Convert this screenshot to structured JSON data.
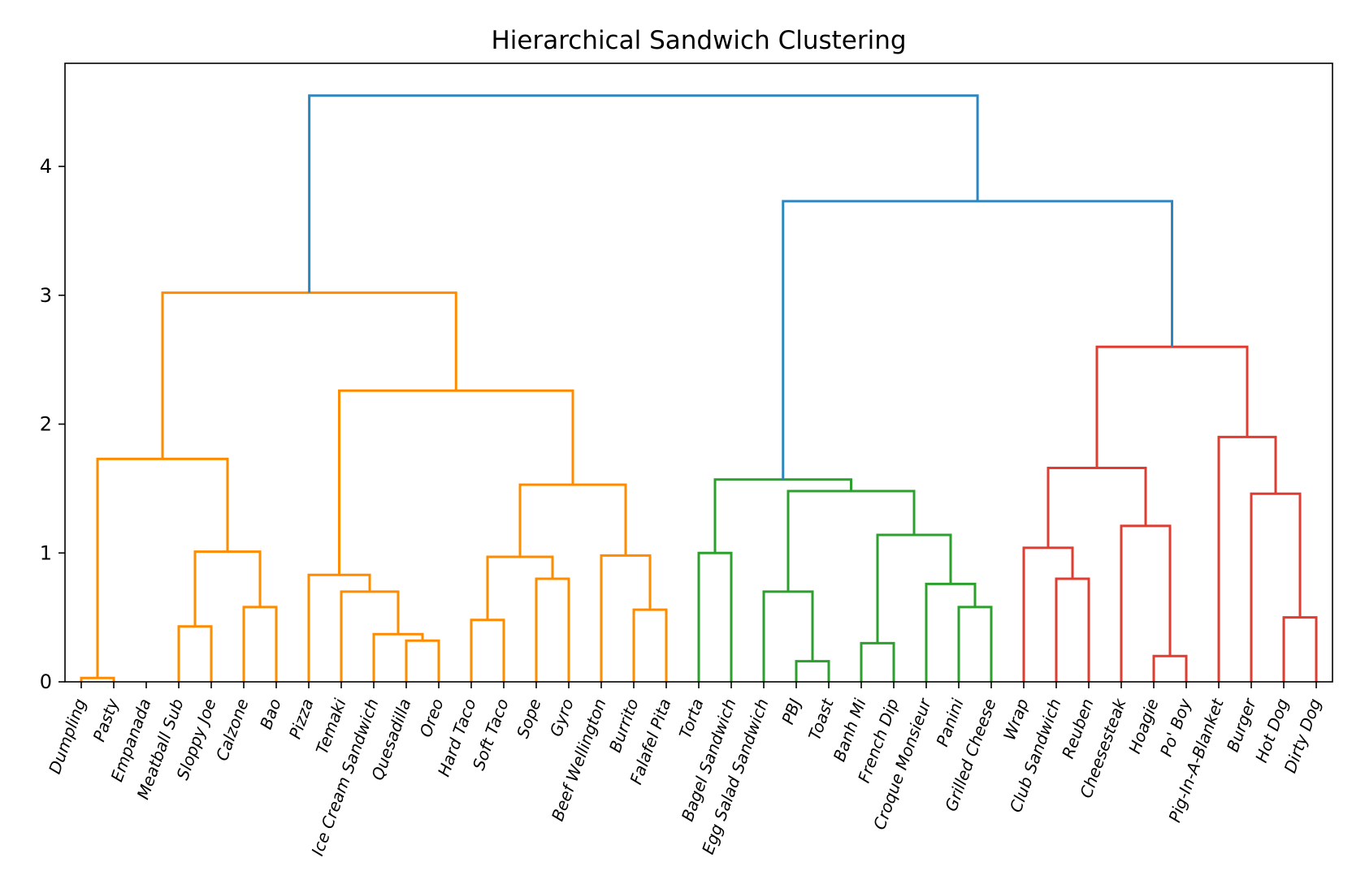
{
  "chart_data": {
    "type": "dendrogram",
    "title": "Hierarchical Sandwich Clustering",
    "xlabel": "",
    "ylabel": "",
    "ylim": [
      0,
      4.8
    ],
    "yticks": [
      0,
      1,
      2,
      3,
      4
    ],
    "grid": false,
    "colors": {
      "root": "#2e86c1",
      "cluster_orange": "#ff8c00",
      "cluster_green": "#2ca02c",
      "cluster_red": "#e03c31"
    },
    "leaves": [
      "Dumpling",
      "Pasty",
      "Empanada",
      "Meatball Sub",
      "Sloppy Joe",
      "Calzone",
      "Bao",
      "Pizza",
      "Temaki",
      "Ice Cream Sandwich",
      "Quesadilla",
      "Oreo",
      "Hard Taco",
      "Soft Taco",
      "Sope",
      "Gyro",
      "Beef Wellington",
      "Burrito",
      "Falafel Pita",
      "Torta",
      "Bagel Sandwich",
      "Egg Salad Sandwich",
      "PBJ",
      "Toast",
      "Banh Mi",
      "French Dip",
      "Croque Monsieur",
      "Panini",
      "Grilled Cheese",
      "Wrap",
      "Club Sandwich",
      "Reuben",
      "Cheesesteak",
      "Hoagie",
      "Po' Boy",
      "Pig-In-A-Blanket",
      "Burger",
      "Hot Dog",
      "Dirty Dog"
    ],
    "merges": [
      {
        "id": "m1",
        "left": 0,
        "right": 1,
        "height": 0.03,
        "color": "cluster_orange"
      },
      {
        "id": "m2",
        "left": 3,
        "right": 4,
        "height": 0.43,
        "color": "cluster_orange"
      },
      {
        "id": "m3",
        "left": 5,
        "right": 6,
        "height": 0.58,
        "color": "cluster_orange"
      },
      {
        "id": "m4",
        "left": "m2",
        "right": "m3",
        "height": 1.01,
        "color": "cluster_orange"
      },
      {
        "id": "m5",
        "left": "m1",
        "right": "m4",
        "height": 1.73,
        "color": "cluster_orange"
      },
      {
        "id": "m6",
        "left": 10,
        "right": 11,
        "height": 0.32,
        "color": "cluster_orange"
      },
      {
        "id": "m7",
        "left": 9,
        "right": "m6",
        "height": 0.37,
        "color": "cluster_orange"
      },
      {
        "id": "m8",
        "left": 8,
        "right": "m7",
        "height": 0.7,
        "color": "cluster_orange"
      },
      {
        "id": "m9",
        "left": 7,
        "right": "m8",
        "height": 0.83,
        "color": "cluster_orange"
      },
      {
        "id": "m10",
        "left": 12,
        "right": 13,
        "height": 0.48,
        "color": "cluster_orange"
      },
      {
        "id": "m11",
        "left": 14,
        "right": 15,
        "height": 0.8,
        "color": "cluster_orange"
      },
      {
        "id": "m12",
        "left": "m10",
        "right": "m11",
        "height": 0.97,
        "color": "cluster_orange"
      },
      {
        "id": "m13",
        "left": 17,
        "right": 18,
        "height": 0.56,
        "color": "cluster_orange"
      },
      {
        "id": "m14",
        "left": 16,
        "right": "m13",
        "height": 0.98,
        "color": "cluster_orange"
      },
      {
        "id": "m15",
        "left": "m12",
        "right": "m14",
        "height": 1.53,
        "color": "cluster_orange"
      },
      {
        "id": "m16",
        "left": "m9",
        "right": "m15",
        "height": 2.26,
        "color": "cluster_orange"
      },
      {
        "id": "m17",
        "left": "m5",
        "right": "m16",
        "height": 3.02,
        "color": "cluster_orange"
      },
      {
        "id": "m18",
        "left": 19,
        "right": 20,
        "height": 1.0,
        "color": "cluster_green"
      },
      {
        "id": "m19",
        "left": 22,
        "right": 23,
        "height": 0.16,
        "color": "cluster_green"
      },
      {
        "id": "m20",
        "left": 21,
        "right": "m19",
        "height": 0.7,
        "color": "cluster_green"
      },
      {
        "id": "m21",
        "left": 24,
        "right": 25,
        "height": 0.3,
        "color": "cluster_green"
      },
      {
        "id": "m22",
        "left": 27,
        "right": 28,
        "height": 0.58,
        "color": "cluster_green"
      },
      {
        "id": "m23",
        "left": 26,
        "right": "m22",
        "height": 0.76,
        "color": "cluster_green"
      },
      {
        "id": "m24",
        "left": "m21",
        "right": "m23",
        "height": 1.14,
        "color": "cluster_green"
      },
      {
        "id": "m25",
        "left": "m20",
        "right": "m24",
        "height": 1.48,
        "color": "cluster_green"
      },
      {
        "id": "m26",
        "left": "m18",
        "right": "m25",
        "height": 1.57,
        "color": "cluster_green"
      },
      {
        "id": "m27",
        "left": 30,
        "right": 31,
        "height": 0.8,
        "color": "cluster_red"
      },
      {
        "id": "m28",
        "left": 29,
        "right": "m27",
        "height": 1.04,
        "color": "cluster_red"
      },
      {
        "id": "m29",
        "left": 33,
        "right": 34,
        "height": 0.2,
        "color": "cluster_red"
      },
      {
        "id": "m30",
        "left": 32,
        "right": "m29",
        "height": 1.21,
        "color": "cluster_red"
      },
      {
        "id": "m31",
        "left": "m28",
        "right": "m30",
        "height": 1.66,
        "color": "cluster_red"
      },
      {
        "id": "m32",
        "left": 37,
        "right": 38,
        "height": 0.5,
        "color": "cluster_red"
      },
      {
        "id": "m33",
        "left": 36,
        "right": "m32",
        "height": 1.46,
        "color": "cluster_red"
      },
      {
        "id": "m34",
        "left": 35,
        "right": "m33",
        "height": 1.9,
        "color": "cluster_red"
      },
      {
        "id": "m35",
        "left": "m31",
        "right": "m34",
        "height": 2.6,
        "color": "cluster_red"
      },
      {
        "id": "m36",
        "left": "m26",
        "right": "m35",
        "height": 3.73,
        "color": "root"
      },
      {
        "id": "m37",
        "left": "m17",
        "right": "m36",
        "height": 4.55,
        "color": "root"
      }
    ]
  }
}
